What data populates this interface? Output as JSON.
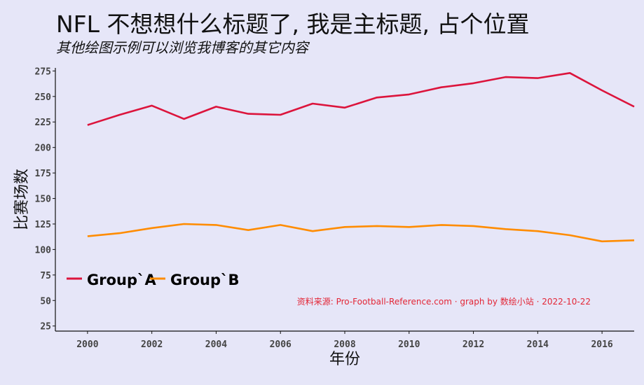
{
  "page": {
    "title": "NFL 不想想什么标题了, 我是主标题, 占个位置",
    "subtitle": "其他绘图示例可以浏览我博客的其它内容",
    "caption": "资料来源: Pro-Football-Reference.com · graph by 数绘小站 · 2022-10-22",
    "background": "#e6e6f8"
  },
  "chart_data": {
    "type": "line",
    "title": "NFL 不想想什么标题了, 我是主标题, 占个位置",
    "subtitle": "其他绘图示例可以浏览我博客的其它内容",
    "xlabel": "年份",
    "ylabel": "比赛场数",
    "xlim": [
      1999,
      2017
    ],
    "ylim": [
      20,
      278
    ],
    "x_ticks": [
      2000,
      2002,
      2004,
      2006,
      2008,
      2010,
      2012,
      2014,
      2016
    ],
    "y_ticks": [
      25,
      50,
      75,
      100,
      125,
      150,
      175,
      200,
      225,
      250,
      275
    ],
    "x": [
      2000,
      2001,
      2002,
      2003,
      2004,
      2005,
      2006,
      2007,
      2008,
      2009,
      2010,
      2011,
      2012,
      2013,
      2014,
      2015,
      2016,
      2017
    ],
    "series": [
      {
        "name": "Group`A",
        "color": "#dc143c",
        "values": [
          222,
          232,
          241,
          228,
          240,
          233,
          232,
          243,
          239,
          249,
          252,
          259,
          263,
          269,
          268,
          273,
          256,
          240
        ]
      },
      {
        "name": "Group`B",
        "color": "#ff8c00",
        "values": [
          113,
          116,
          121,
          125,
          124,
          119,
          124,
          118,
          122,
          123,
          122,
          124,
          123,
          120,
          118,
          114,
          108,
          109
        ]
      }
    ],
    "grid": false,
    "legend": "bottom-left"
  }
}
